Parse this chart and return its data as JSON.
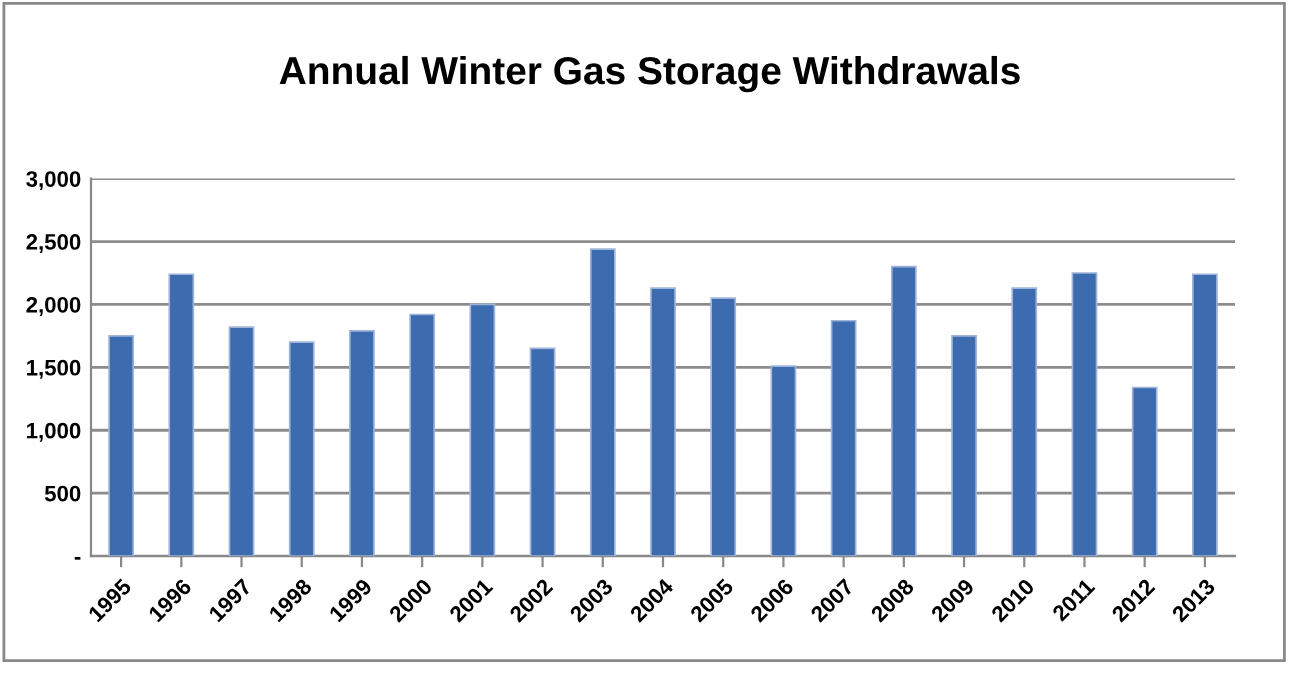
{
  "chart_data": {
    "type": "bar",
    "title": "Annual Winter Gas Storage Withdrawals",
    "categories": [
      "1995",
      "1996",
      "1997",
      "1998",
      "1999",
      "2000",
      "2001",
      "2002",
      "2003",
      "2004",
      "2005",
      "2006",
      "2007",
      "2008",
      "2009",
      "2010",
      "2011",
      "2012",
      "2013"
    ],
    "values": [
      1750,
      2240,
      1820,
      1700,
      1790,
      1920,
      2000,
      1650,
      2440,
      2130,
      2050,
      1510,
      1870,
      2300,
      1750,
      2130,
      2250,
      1340,
      2240
    ],
    "color": "#3d6bb0",
    "ylim": [
      0,
      3000
    ],
    "yticks": [
      {
        "value": 0,
        "label": "-"
      },
      {
        "value": 500,
        "label": "500"
      },
      {
        "value": 1000,
        "label": "1,000"
      },
      {
        "value": 1500,
        "label": "1,500"
      },
      {
        "value": 2000,
        "label": "2,000"
      },
      {
        "value": 2500,
        "label": "2,500"
      },
      {
        "value": 3000,
        "label": "3,000"
      }
    ],
    "grid": "y",
    "legend": false
  }
}
